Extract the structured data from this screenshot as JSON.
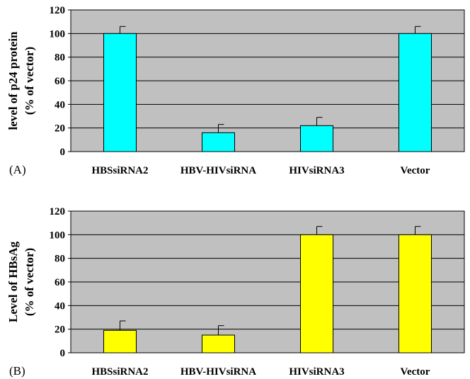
{
  "chart_data": [
    {
      "type": "bar",
      "panel_label": "(A)",
      "categories": [
        "HBSsiRNA2",
        "HBV-HIVsiRNA",
        "HIVsiRNA3",
        "Vector"
      ],
      "values": [
        100,
        16,
        22,
        100
      ],
      "errors": [
        6,
        7,
        7,
        6
      ],
      "ylabel_line1": "level of p24 protein",
      "ylabel_line2": "(% of vector)",
      "ylim": [
        0,
        120
      ],
      "yticks": [
        "0",
        "20",
        "40",
        "60",
        "80",
        "100",
        "120"
      ],
      "grid": true,
      "colors": {
        "bar": "#00ffff",
        "plot_bg": "#c0c0c0"
      }
    },
    {
      "type": "bar",
      "panel_label": "(B)",
      "categories": [
        "HBSsiRNA2",
        "HBV-HIVsiRNA",
        "HIVsiRNA3",
        "Vector"
      ],
      "values": [
        19,
        15,
        100,
        100
      ],
      "errors": [
        8,
        8,
        7,
        7
      ],
      "ylabel_line1": "Level of HBsAg",
      "ylabel_line2": "(% of vector)",
      "ylim": [
        0,
        120
      ],
      "yticks": [
        "0",
        "20",
        "40",
        "60",
        "80",
        "100",
        "120"
      ],
      "grid": true,
      "colors": {
        "bar": "#ffff00",
        "plot_bg": "#c0c0c0"
      }
    }
  ]
}
